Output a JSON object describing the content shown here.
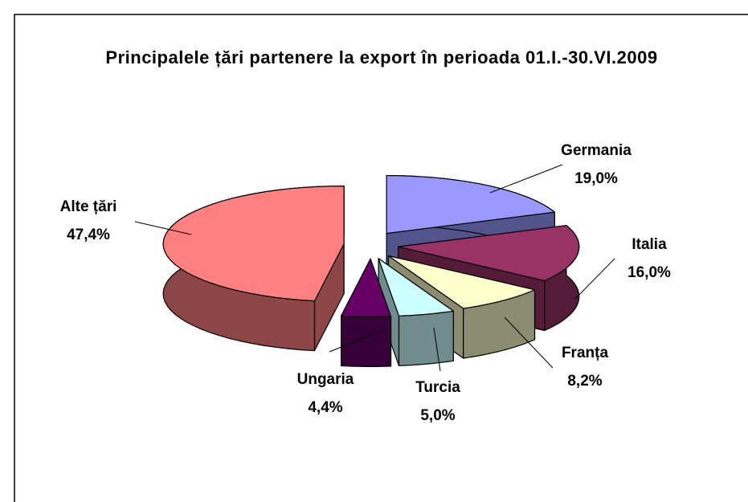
{
  "chart_data": {
    "type": "pie",
    "title": "Principalele țări partenere la export în perioada 01.I.-30.VI.2009",
    "categories": [
      "Germania",
      "Italia",
      "Franța",
      "Turcia",
      "Ungaria",
      "Alte țări"
    ],
    "values": [
      19.0,
      16.0,
      8.2,
      5.0,
      4.4,
      47.4
    ],
    "value_labels": [
      "19,0%",
      "16,0%",
      "8,2%",
      "5,0%",
      "4,4%",
      "47,4%"
    ],
    "colors": [
      "#9999ff",
      "#993366",
      "#ffffcc",
      "#ccffff",
      "#660066",
      "#ff8080"
    ],
    "exploded": true
  }
}
